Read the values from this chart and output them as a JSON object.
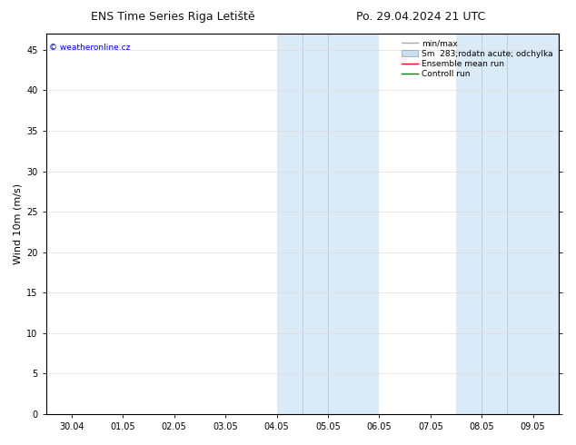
{
  "title_left": "ENS Time Series Riga Letiště",
  "title_right": "Po. 29.04.2024 21 UTC",
  "ylabel": "Wind 10m (m/s)",
  "xtick_labels": [
    "30.04",
    "01.05",
    "02.05",
    "03.05",
    "04.05",
    "05.05",
    "06.05",
    "07.05",
    "08.05",
    "09.05"
  ],
  "xtick_positions": [
    0,
    1,
    2,
    3,
    4,
    5,
    6,
    7,
    8,
    9
  ],
  "ylim": [
    0,
    47
  ],
  "ytick_positions": [
    0,
    5,
    10,
    15,
    20,
    25,
    30,
    35,
    40,
    45
  ],
  "ytick_labels": [
    "0",
    "5",
    "10",
    "15",
    "20",
    "25",
    "30",
    "35",
    "40",
    "45"
  ],
  "shaded_groups": [
    {
      "x_start": 3.5,
      "x_end": 4.5
    },
    {
      "x_start": 4.5,
      "x_end": 6.0
    },
    {
      "x_start": 7.0,
      "x_end": 8.0
    },
    {
      "x_start": 8.0,
      "x_end": 9.5
    }
  ],
  "xlim": [
    -0.5,
    9.5
  ],
  "watermark_text": "© weatheronline.cz",
  "watermark_color": "#0000cc",
  "background_color": "#ffffff",
  "title_fontsize": 9,
  "tick_fontsize": 7,
  "ylabel_fontsize": 8,
  "legend_fontsize": 6.5,
  "shaded_color": "#daeaf7",
  "grid_color": "#dddddd",
  "axis_color": "#000000",
  "minmax_color": "#aaaaaa",
  "sm_color": "#c8dff0",
  "ensemble_color": "red",
  "control_color": "green"
}
